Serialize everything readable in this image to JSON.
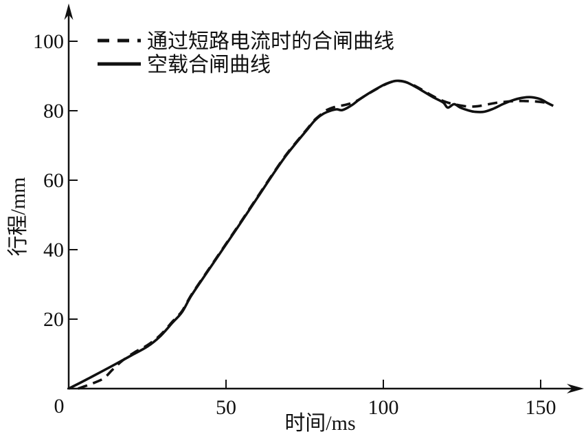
{
  "figure": {
    "background": "#ffffff",
    "ink_color": "#111111"
  },
  "chart_data": {
    "type": "line",
    "title": "",
    "xlabel": "时间/ms",
    "ylabel": "行程/mm",
    "origin_label": "0",
    "x_ticks": [
      50,
      100,
      150
    ],
    "y_ticks": [
      20,
      40,
      60,
      80,
      100
    ],
    "xlim": [
      0,
      163
    ],
    "ylim": [
      0,
      110
    ],
    "grid": false,
    "legend_position": "top-left-inside",
    "series": [
      {
        "name": "通过短路电流时的合闸曲线",
        "style": "dashed",
        "points": [
          [
            3,
            0
          ],
          [
            7,
            1.3
          ],
          [
            11,
            2.9
          ],
          [
            14,
            5.5
          ],
          [
            17,
            8
          ],
          [
            21,
            10.5
          ],
          [
            25,
            12.5
          ],
          [
            29,
            15.3
          ],
          [
            33,
            19.3
          ],
          [
            36,
            22.3
          ],
          [
            39,
            27
          ],
          [
            44,
            33.7
          ],
          [
            50,
            41.7
          ],
          [
            55,
            48.4
          ],
          [
            60,
            55.2
          ],
          [
            65,
            62
          ],
          [
            69,
            67.2
          ],
          [
            73,
            71.7
          ],
          [
            76,
            75
          ],
          [
            78,
            77.2
          ],
          [
            80,
            78.8
          ],
          [
            82,
            80.2
          ],
          [
            85,
            81.2
          ],
          [
            88,
            81.7
          ],
          [
            91,
            82.6
          ],
          [
            94,
            84.2
          ],
          [
            97,
            85.8
          ],
          [
            100,
            87.3
          ],
          [
            103,
            88.4
          ],
          [
            106,
            88.5
          ],
          [
            109,
            87.6
          ],
          [
            112,
            86.2
          ],
          [
            115,
            84.6
          ],
          [
            118,
            83.2
          ],
          [
            121,
            82.2
          ],
          [
            124,
            81.6
          ],
          [
            127,
            81.2
          ],
          [
            130,
            81.3
          ],
          [
            133,
            81.8
          ],
          [
            136,
            82.3
          ],
          [
            139,
            82.6
          ],
          [
            142,
            82.8
          ],
          [
            145,
            82.8
          ],
          [
            148,
            82.7
          ],
          [
            151,
            82.4
          ],
          [
            153,
            82
          ]
        ]
      },
      {
        "name": "空载合闸曲线",
        "style": "solid",
        "points": [
          [
            0,
            0
          ],
          [
            5,
            2.3
          ],
          [
            10,
            4.7
          ],
          [
            15,
            7.1
          ],
          [
            20,
            9.6
          ],
          [
            25,
            12.1
          ],
          [
            29,
            15
          ],
          [
            33,
            19
          ],
          [
            36,
            22
          ],
          [
            39,
            26.8
          ],
          [
            44,
            33.5
          ],
          [
            50,
            41.5
          ],
          [
            55,
            48.2
          ],
          [
            60,
            55
          ],
          [
            65,
            61.8
          ],
          [
            69,
            67
          ],
          [
            73,
            71.5
          ],
          [
            76,
            74.8
          ],
          [
            78,
            77
          ],
          [
            80,
            78.6
          ],
          [
            82,
            79.6
          ],
          [
            85,
            80.4
          ],
          [
            87,
            80.2
          ],
          [
            90,
            81.6
          ],
          [
            92,
            83
          ],
          [
            95,
            84.8
          ],
          [
            98,
            86.4
          ],
          [
            101,
            87.8
          ],
          [
            104,
            88.6
          ],
          [
            107,
            88.3
          ],
          [
            110,
            87
          ],
          [
            113,
            85.4
          ],
          [
            116,
            83.8
          ],
          [
            119,
            82.4
          ],
          [
            120.5,
            80.9
          ],
          [
            122.5,
            81.9
          ],
          [
            124.5,
            80.9
          ],
          [
            127,
            80.1
          ],
          [
            129,
            79.7
          ],
          [
            132,
            79.7
          ],
          [
            135,
            80.6
          ],
          [
            138,
            81.9
          ],
          [
            141,
            83
          ],
          [
            144,
            83.7
          ],
          [
            147,
            83.9
          ],
          [
            150,
            83.3
          ],
          [
            152,
            82.3
          ],
          [
            154,
            81.4
          ]
        ]
      }
    ]
  }
}
